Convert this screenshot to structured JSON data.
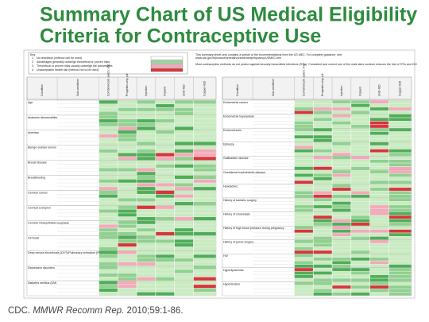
{
  "header": {
    "title_line1": "Summary Chart of US Medical Eligibility",
    "title_line2": "Criteria for Contraceptive Use"
  },
  "legend": {
    "title": "Key:",
    "items": [
      {
        "number": "1",
        "text": "No restriction (method can be used)"
      },
      {
        "number": "2",
        "text": "Advantages generally outweigh theoretical or proven risks"
      },
      {
        "number": "3",
        "text": "Theoretical or proven risks usually outweigh the advantages"
      },
      {
        "number": "4",
        "text": "Unacceptable health risk (method not to be used)"
      }
    ]
  },
  "notes": [
    "This summary sheet only contains a subset of the recommendations from the US MEC. For complete guidance, see:",
    "www.cdc.gov/reproductivehealth/unintendedpregnancy/USMEC.htm",
    "Most contraceptive methods do not protect against sexually transmitted infections (STIs). Consistent and correct use of the male latex condom reduces the risk of STIs and HIV."
  ],
  "table": {
    "columns": [
      "Condition",
      "Sub-condition",
      "Combined pill, patch, ring",
      "Progestin-only pill",
      "Injection",
      "Implant",
      "LNG-IUD",
      "Copper-IUD"
    ],
    "left_conditions": [
      "Age",
      "Anatomic abnormalities",
      "Anemias",
      "Benign ovarian tumors",
      "Breast disease",
      "Breastfeeding",
      "Cervical cancer",
      "Cervical ectropion",
      "Cervical intraepithelial neoplasia",
      "Cirrhosis",
      "Deep venous thrombosis (DVT)/Pulmonary embolism (PE)",
      "Depressive disorders",
      "Diabetes mellitus (DM)"
    ],
    "right_conditions": [
      "Endometrial cancer",
      "Endometrial hyperplasia",
      "Endometriosis",
      "Epilepsy",
      "Gallbladder disease",
      "Gestational trophoblastic disease",
      "Headaches",
      "History of bariatric surgery",
      "History of cholestasis",
      "History of high blood pressure during pregnancy",
      "History of pelvic surgery",
      "HIV",
      "Hyperlipidemias",
      "Hypertension"
    ]
  },
  "citation": {
    "author": "CDC.",
    "journal": "MMWR Recomm Rep.",
    "reference": "2010;59:1-86."
  }
}
